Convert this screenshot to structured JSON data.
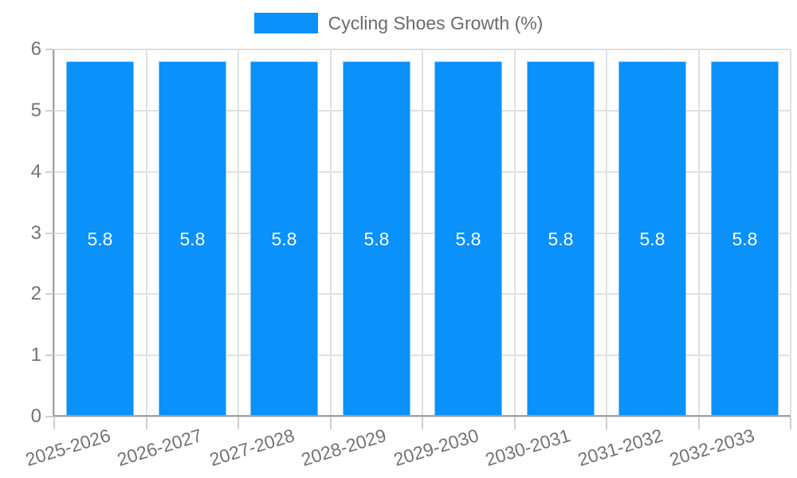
{
  "chart_data": {
    "type": "bar",
    "title": "Cycling Shoes Growth (%)",
    "categories": [
      "2025-2026",
      "2026-2027",
      "2027-2028",
      "2028-2029",
      "2029-2030",
      "2030-2031",
      "2031-2032",
      "2032-2033"
    ],
    "series": [
      {
        "name": "Cycling Shoes Growth (%)",
        "values": [
          5.8,
          5.8,
          5.8,
          5.8,
          5.8,
          5.8,
          5.8,
          5.8
        ],
        "value_labels": [
          "5.8",
          "5.8",
          "5.8",
          "5.8",
          "5.8",
          "5.8",
          "5.8",
          "5.8"
        ]
      }
    ],
    "xlabel": "",
    "ylabel": "",
    "ylim": [
      0,
      6
    ],
    "yticks": [
      "0",
      "1",
      "2",
      "3",
      "4",
      "5",
      "6"
    ],
    "grid": true,
    "legend_position": "top-center",
    "colors": {
      "bar_fill": "#0a91fa",
      "bar_border": "#86c5fb",
      "bar_value_label": "#ffffff",
      "grid_line": "#e0e0e0",
      "axis_line": "#a0a0a0",
      "tick_mark": "#cfcfcf",
      "tick_label": "#737373",
      "legend_text": "#6b6b6b"
    }
  }
}
